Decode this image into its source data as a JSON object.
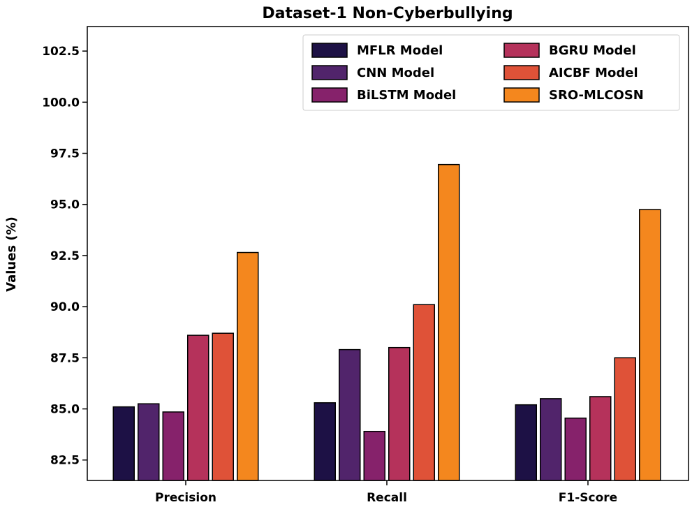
{
  "chart_data": {
    "type": "bar",
    "title": "Dataset-1 Non-Cyberbullying",
    "xlabel": "",
    "ylabel": "Values (%)",
    "ylim": [
      81.5,
      103.7
    ],
    "yticks": [
      82.5,
      85.0,
      87.5,
      90.0,
      92.5,
      95.0,
      97.5,
      100.0,
      102.5
    ],
    "ytick_labels": [
      "82.5",
      "85.0",
      "87.5",
      "90.0",
      "92.5",
      "95.0",
      "97.5",
      "100.0",
      "102.5"
    ],
    "categories": [
      "Precision",
      "Recall",
      "F1-Score"
    ],
    "legend_position": "top-right",
    "series": [
      {
        "name": "MFLR Model",
        "color": "#1d1145",
        "values": [
          85.1,
          85.3,
          85.2
        ]
      },
      {
        "name": "CNN Model",
        "color": "#51246b",
        "values": [
          85.25,
          87.9,
          85.5
        ]
      },
      {
        "name": "BiLSTM Model",
        "color": "#86226b",
        "values": [
          84.85,
          83.9,
          84.55
        ]
      },
      {
        "name": "BGRU Model",
        "color": "#b5325b",
        "values": [
          88.6,
          88.0,
          85.6
        ]
      },
      {
        "name": "AICBF Model",
        "color": "#df5238",
        "values": [
          88.7,
          90.1,
          87.5
        ]
      },
      {
        "name": "SRO-MLCOSN",
        "color": "#f4871e",
        "values": [
          92.65,
          96.95,
          94.75
        ]
      }
    ]
  }
}
